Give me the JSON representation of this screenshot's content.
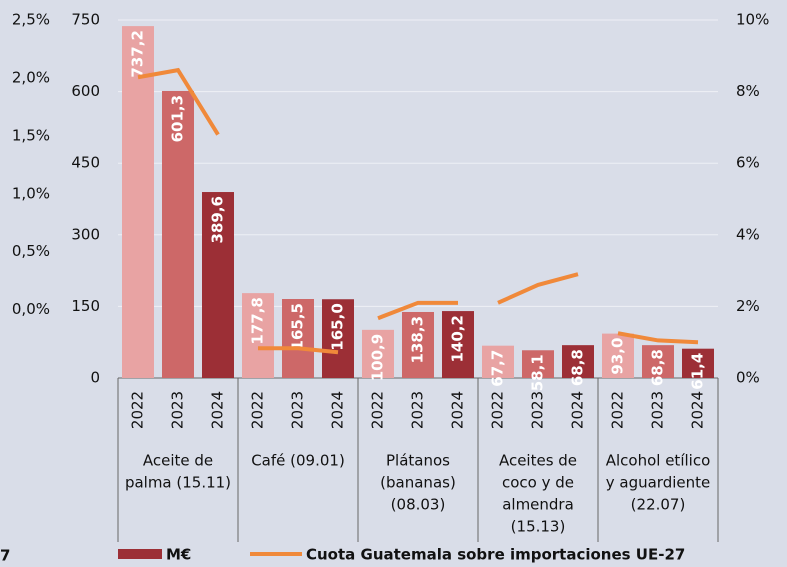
{
  "chart_data": {
    "type": "bar_line",
    "note": "7",
    "groups": [
      {
        "label": [
          "Aceite de",
          "palma (15.11)"
        ],
        "years": [
          "2022",
          "2023",
          "2024"
        ]
      },
      {
        "label": [
          "Café (09.01)"
        ],
        "years": [
          "2022",
          "2023",
          "2024"
        ]
      },
      {
        "label": [
          "Plátanos",
          "(bananas)",
          "(08.03)"
        ],
        "years": [
          "2022",
          "2023",
          "2024"
        ]
      },
      {
        "label": [
          "Aceites de",
          "coco y de",
          "almendra",
          "(15.13)"
        ],
        "years": [
          "2022",
          "2023",
          "2024"
        ]
      },
      {
        "label": [
          "Alcohol etílico",
          "y aguardiente",
          "(22.07)"
        ],
        "years": [
          "2022",
          "2023",
          "2024"
        ]
      }
    ],
    "series": [
      {
        "name": "M€",
        "type": "bar",
        "colors": [
          "#e8a3a3",
          "#cd6868",
          "#9c2f36"
        ],
        "values": [
          [
            737.2,
            601.3,
            389.6
          ],
          [
            177.8,
            165.5,
            165.0
          ],
          [
            100.9,
            138.3,
            140.2
          ],
          [
            67.7,
            58.1,
            68.8
          ],
          [
            93.0,
            68.8,
            61.4
          ]
        ],
        "value_labels": [
          [
            "737,2",
            "601,3",
            "389,6"
          ],
          [
            "177,8",
            "165,5",
            "165,0"
          ],
          [
            "100,9",
            "138,3",
            "140,2"
          ],
          [
            "67,7",
            "58,1",
            "68,8"
          ],
          [
            "93,0",
            "68,8",
            "61,4"
          ]
        ]
      },
      {
        "name": "Cuota Guatemala sobre importaciones UE-27",
        "type": "line",
        "axis": "y2",
        "color": "#f0893a",
        "values": [
          [
            8.4,
            8.6,
            6.8
          ],
          [
            0.83,
            0.83,
            0.72
          ],
          [
            1.67,
            2.1,
            2.1
          ],
          [
            2.1,
            2.6,
            2.9
          ],
          [
            1.25,
            1.05,
            1.0
          ]
        ]
      }
    ],
    "ylim": [
      0,
      750
    ],
    "yticks": [
      0,
      150,
      300,
      450,
      600,
      750
    ],
    "y2lim": [
      0,
      10
    ],
    "y2ticks": [
      {
        "value": 0,
        "label": "0%"
      },
      {
        "value": 2,
        "label": "2%"
      },
      {
        "value": 4,
        "label": "4%"
      },
      {
        "value": 6,
        "label": "6%"
      },
      {
        "value": 8,
        "label": "8%"
      },
      {
        "value": 10,
        "label": "10%"
      }
    ],
    "y3lim": [
      -0.59,
      2.5
    ],
    "y3ticks": [
      {
        "value": 0,
        "label": "0,0%"
      },
      {
        "value": 0.5,
        "label": "0,5%"
      },
      {
        "value": 1,
        "label": "1,0%"
      },
      {
        "value": 1.5,
        "label": "1,5%"
      },
      {
        "value": 2,
        "label": "2,0%"
      },
      {
        "value": 2.5,
        "label": "2,5%"
      }
    ],
    "grid": true
  }
}
